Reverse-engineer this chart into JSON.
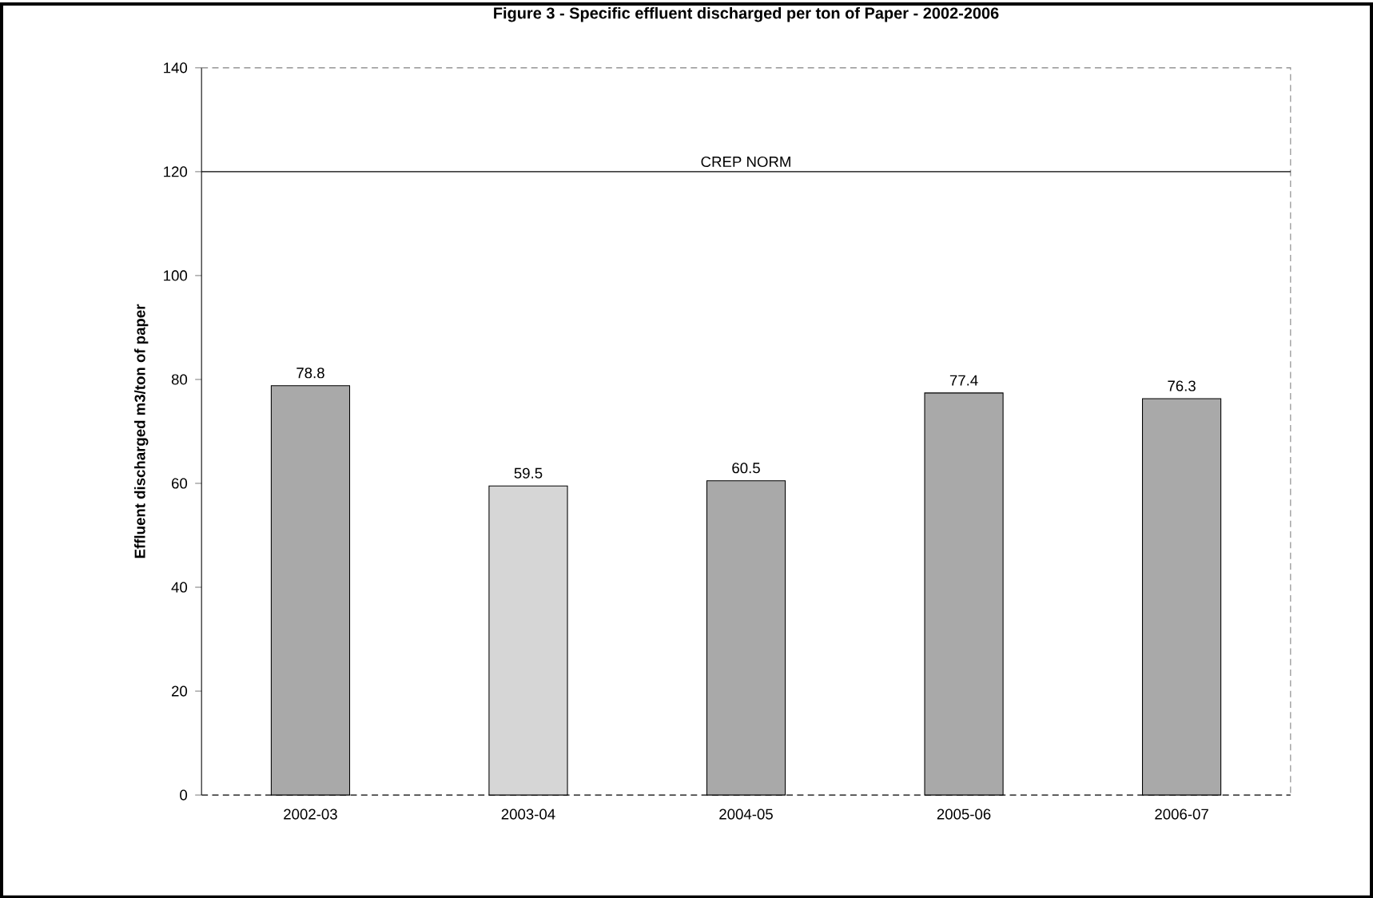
{
  "chart_data": {
    "type": "bar",
    "title": "Figure 3 - Specific effluent discharged per ton of Paper - 2002-2006",
    "ylabel": "Effluent discharged m3/ton of paper",
    "categories": [
      "2002-03",
      "2003-04",
      "2004-05",
      "2005-06",
      "2006-07"
    ],
    "values": [
      78.8,
      59.5,
      60.5,
      77.4,
      76.3
    ],
    "colors": [
      "#a9a9a9",
      "#d6d6d6",
      "#a9a9a9",
      "#a9a9a9",
      "#a9a9a9"
    ],
    "ylim": [
      0,
      140
    ],
    "yticks": [
      0,
      20,
      40,
      60,
      80,
      100,
      120,
      140
    ],
    "data_labels": true,
    "ref_lines": [
      {
        "axis": "y",
        "value": 120,
        "label": "CREP NORM",
        "color": "#000000",
        "line_style": "solid"
      }
    ]
  }
}
